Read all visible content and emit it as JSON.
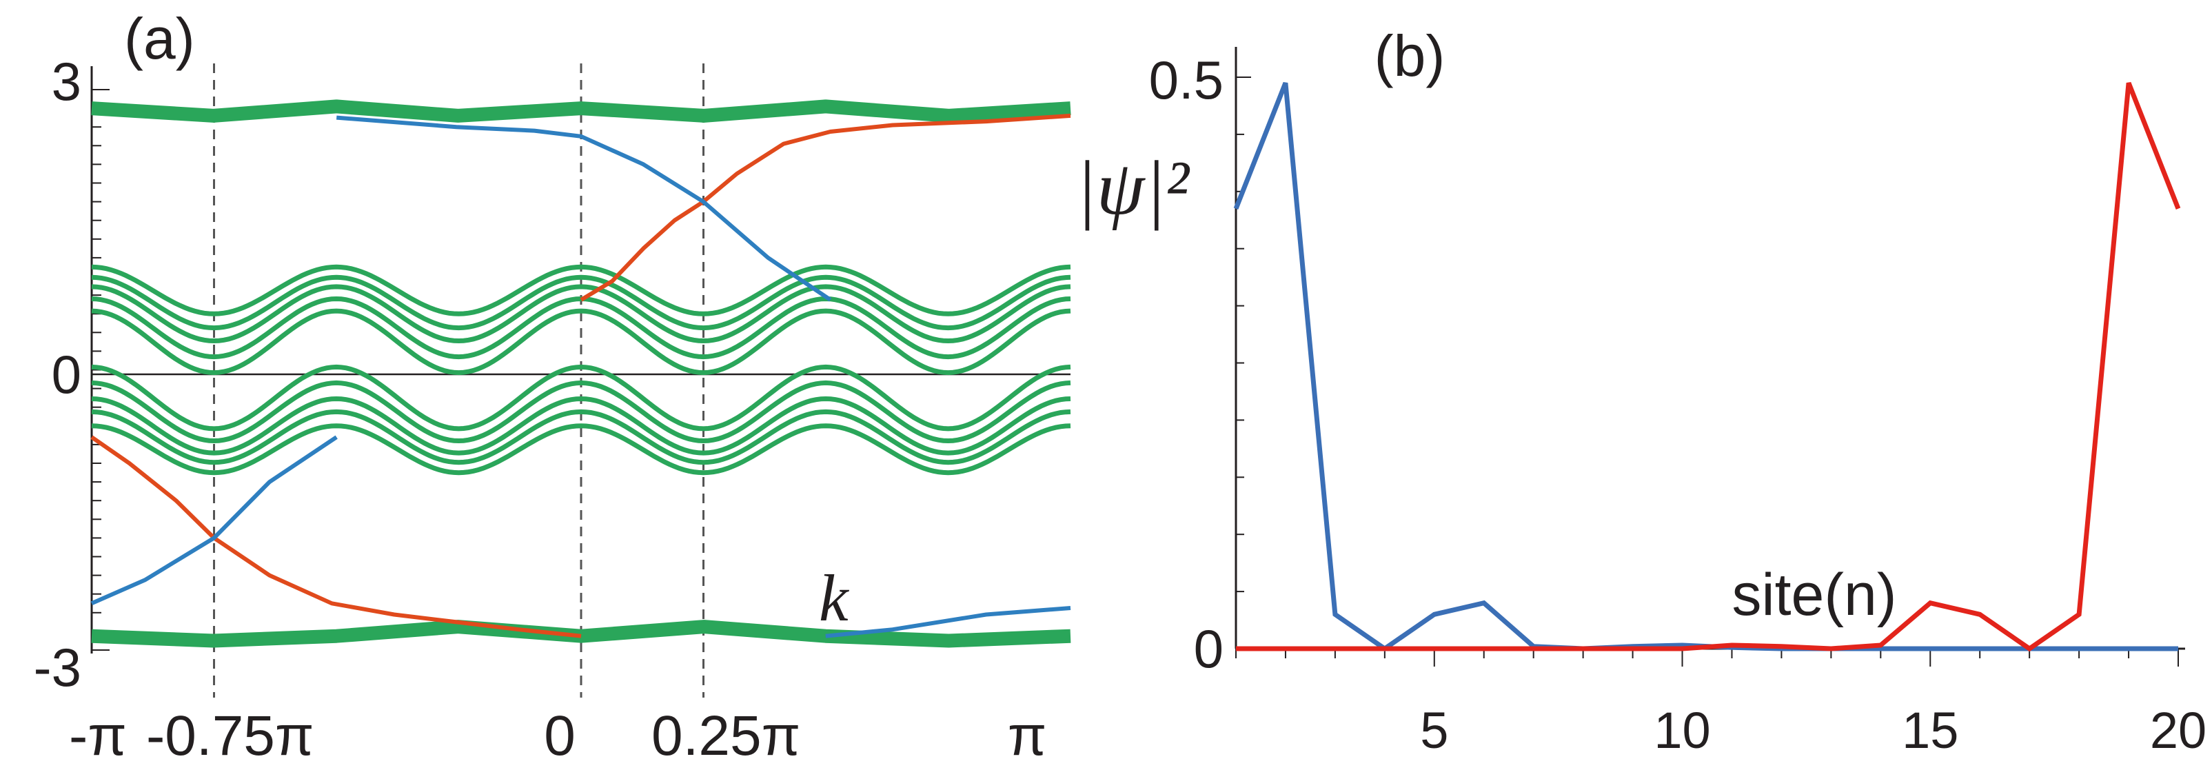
{
  "chart_data": [
    {
      "type": "line",
      "panel_label": "(a)",
      "xlabel": "k",
      "ylabel": "",
      "xlim": [
        -3.14159,
        3.14159
      ],
      "ylim": [
        -3,
        3
      ],
      "x_ticks": [
        {
          "value": -3.14159,
          "label": "-π"
        },
        {
          "value": -2.35619,
          "label": "-0.75π"
        },
        {
          "value": 0,
          "label": "0"
        },
        {
          "value": 0.785398,
          "label": "0.25π"
        },
        {
          "value": 3.14159,
          "label": "π"
        }
      ],
      "y_ticks": [
        {
          "value": 3,
          "label": "3"
        },
        {
          "value": 0,
          "label": "0"
        },
        {
          "value": -3,
          "label": "-3"
        }
      ],
      "dashed_vertical_lines": [
        -2.35619,
        0,
        0.785398
      ],
      "series": [
        {
          "name": "upper outer band",
          "color": "#2aa65a",
          "x": [
            -3.14159,
            -2.36,
            -1.57,
            -0.79,
            0,
            0.79,
            1.57,
            2.36,
            3.14159
          ],
          "values": [
            2.8,
            2.72,
            2.82,
            2.72,
            2.8,
            2.72,
            2.82,
            2.72,
            2.8
          ]
        },
        {
          "name": "lower outer band",
          "color": "#2aa65a",
          "x": [
            -3.14159,
            -2.36,
            -1.57,
            -0.79,
            0,
            0.79,
            1.57,
            2.36,
            3.14159
          ],
          "values": [
            -2.85,
            -2.9,
            -2.85,
            -2.75,
            -2.85,
            -2.75,
            -2.85,
            -2.9,
            -2.85
          ]
        },
        {
          "name": "edge state (red, upper)",
          "color": "#e04a1c",
          "x": [
            0,
            0.2,
            0.4,
            0.6,
            0.785,
            1.0,
            1.3,
            1.6,
            2.0,
            2.6,
            3.14159
          ],
          "values": [
            0.75,
            0.95,
            1.3,
            1.6,
            1.8,
            2.1,
            2.42,
            2.55,
            2.62,
            2.66,
            2.72
          ]
        },
        {
          "name": "edge state (blue, upper)",
          "color": "#2e7fc0",
          "x": [
            -1.57,
            -0.8,
            -0.3,
            0,
            0.4,
            0.785,
            1.2,
            1.6
          ],
          "values": [
            2.7,
            2.6,
            2.56,
            2.5,
            2.2,
            1.8,
            1.2,
            0.75
          ]
        },
        {
          "name": "edge state (red, lower)",
          "color": "#e04a1c",
          "x": [
            -3.14159,
            -2.9,
            -2.6,
            -2.356,
            -2.0,
            -1.6,
            -1.2,
            -0.8,
            -0.4,
            0
          ],
          "values": [
            -0.72,
            -1.0,
            -1.4,
            -1.8,
            -2.2,
            -2.5,
            -2.62,
            -2.7,
            -2.78,
            -2.85
          ]
        },
        {
          "name": "edge state (blue, lower)",
          "color": "#2e7fc0",
          "x": [
            -3.14159,
            -2.8,
            -2.356,
            -2.0,
            -1.57
          ],
          "values": [
            -2.5,
            -2.25,
            -1.8,
            -1.2,
            -0.72
          ]
        },
        {
          "name": "edge state (blue, right lower)",
          "color": "#2e7fc0",
          "x": [
            1.57,
            2.0,
            2.6,
            3.14159
          ],
          "values": [
            -2.85,
            -2.78,
            -2.62,
            -2.55
          ]
        },
        {
          "name": "bulk bands (green)",
          "color": "#2aa65a",
          "x": [
            -3.14159,
            3.14159
          ],
          "values": [
            0.8,
            0.8
          ]
        }
      ]
    },
    {
      "type": "line",
      "panel_label": "(b)",
      "xlabel": "site(n)",
      "ylabel": "|ψ|²",
      "xlim": [
        1,
        20
      ],
      "ylim": [
        0,
        0.5
      ],
      "x_ticks": [
        5,
        10,
        15,
        20
      ],
      "y_ticks": [
        0,
        0.5
      ],
      "x": [
        1,
        2,
        3,
        4,
        5,
        6,
        7,
        8,
        9,
        10,
        11,
        12,
        13,
        14,
        15,
        16,
        17,
        18,
        19,
        20
      ],
      "series": [
        {
          "name": "blue",
          "color": "#3b6fb6",
          "values": [
            0.385,
            0.495,
            0.03,
            0,
            0.03,
            0.04,
            0.002,
            0,
            0.002,
            0.003,
            0.001,
            0,
            0,
            0,
            0,
            0,
            0,
            0,
            0,
            0
          ]
        },
        {
          "name": "red",
          "color": "#e3241b",
          "values": [
            0,
            0,
            0,
            0,
            0,
            0,
            0,
            0,
            0,
            0,
            0.003,
            0.002,
            0,
            0.003,
            0.04,
            0.03,
            0,
            0.03,
            0.495,
            0.385
          ]
        }
      ]
    }
  ]
}
